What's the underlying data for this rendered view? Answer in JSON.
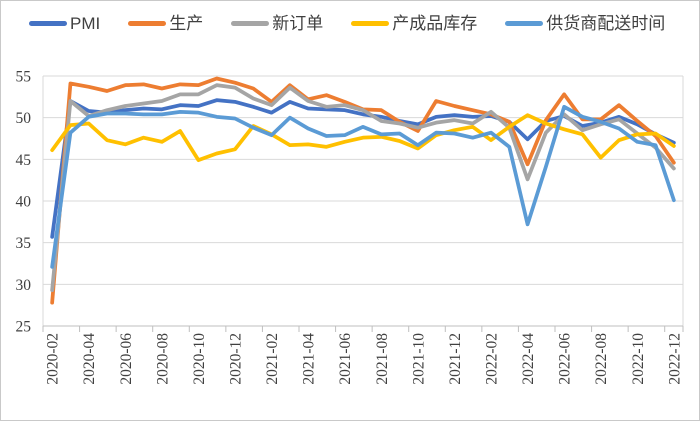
{
  "colors": {
    "pmi": "#4472C4",
    "production": "#ED7D31",
    "new_orders": "#A5A5A5",
    "inventory": "#FFC000",
    "delivery": "#5B9BD5",
    "gridline": "#D9D9D9",
    "axis": "#BFBFBF",
    "axis_text": "#404040",
    "frame_border": "#C9C9C9"
  },
  "legend": {
    "items": [
      {
        "label": "PMI",
        "color": "#4472C4"
      },
      {
        "label": "生产",
        "color": "#ED7D31"
      },
      {
        "label": "新订单",
        "color": "#A5A5A5"
      },
      {
        "label": "产成品库存",
        "color": "#FFC000"
      },
      {
        "label": "供货商配送时间",
        "color": "#5B9BD5"
      }
    ]
  },
  "chart_data": {
    "type": "line",
    "title": "",
    "xlabel": "",
    "ylabel": "",
    "ylim": [
      25,
      55
    ],
    "y_ticks": [
      25,
      30,
      35,
      40,
      45,
      50,
      55
    ],
    "grid": true,
    "legend_position": "top",
    "x_label_every": 2,
    "x": [
      "2020-02",
      "2020-03",
      "2020-04",
      "2020-05",
      "2020-06",
      "2020-07",
      "2020-08",
      "2020-09",
      "2020-10",
      "2020-11",
      "2020-12",
      "2021-01",
      "2021-02",
      "2021-03",
      "2021-04",
      "2021-05",
      "2021-06",
      "2021-07",
      "2021-08",
      "2021-09",
      "2021-10",
      "2021-11",
      "2021-12",
      "2022-01",
      "2022-02",
      "2022-03",
      "2022-04",
      "2022-05",
      "2022-06",
      "2022-07",
      "2022-08",
      "2022-09",
      "2022-10",
      "2022-11",
      "2022-12"
    ],
    "series": [
      {
        "name": "PMI",
        "color": "#4472C4",
        "values": [
          35.7,
          52.0,
          50.8,
          50.6,
          50.9,
          51.1,
          51.0,
          51.5,
          51.4,
          52.1,
          51.9,
          51.3,
          50.6,
          51.9,
          51.1,
          51.0,
          50.9,
          50.4,
          50.1,
          49.6,
          49.2,
          50.1,
          50.3,
          50.1,
          50.2,
          49.5,
          47.4,
          49.6,
          50.2,
          49.0,
          49.4,
          50.1,
          49.2,
          48.0,
          47.0
        ]
      },
      {
        "name": "生产",
        "color": "#ED7D31",
        "values": [
          27.8,
          54.1,
          53.7,
          53.2,
          53.9,
          54.0,
          53.5,
          54.0,
          53.9,
          54.7,
          54.2,
          53.5,
          51.9,
          53.9,
          52.2,
          52.7,
          51.9,
          51.0,
          50.9,
          49.5,
          48.4,
          52.0,
          51.4,
          50.9,
          50.4,
          49.5,
          44.4,
          49.7,
          52.8,
          49.8,
          49.8,
          51.5,
          49.6,
          47.8,
          44.6
        ]
      },
      {
        "name": "新订单",
        "color": "#A5A5A5",
        "values": [
          29.3,
          52.0,
          50.2,
          50.9,
          51.4,
          51.7,
          52.0,
          52.8,
          52.8,
          53.9,
          53.6,
          52.3,
          51.5,
          53.6,
          52.0,
          51.3,
          51.5,
          50.9,
          49.6,
          49.3,
          48.8,
          49.4,
          49.7,
          49.3,
          50.7,
          48.8,
          42.6,
          48.2,
          50.4,
          48.5,
          49.2,
          49.8,
          48.1,
          46.4,
          43.9
        ]
      },
      {
        "name": "产成品库存",
        "color": "#FFC000",
        "values": [
          46.1,
          49.1,
          49.3,
          47.3,
          46.8,
          47.6,
          47.1,
          48.4,
          44.9,
          45.7,
          46.2,
          49.0,
          48.0,
          46.7,
          46.8,
          46.5,
          47.1,
          47.6,
          47.7,
          47.2,
          46.3,
          47.9,
          48.5,
          48.9,
          47.3,
          48.9,
          50.3,
          49.3,
          48.6,
          48.0,
          45.2,
          47.3,
          48.0,
          48.1,
          46.6
        ]
      },
      {
        "name": "供货商配送时间",
        "color": "#5B9BD5",
        "values": [
          32.1,
          48.2,
          50.1,
          50.5,
          50.5,
          50.4,
          50.4,
          50.7,
          50.6,
          50.1,
          49.9,
          48.8,
          47.9,
          50.0,
          48.7,
          47.8,
          47.9,
          48.9,
          48.0,
          48.1,
          46.7,
          48.2,
          48.1,
          47.6,
          48.2,
          46.5,
          37.2,
          44.1,
          51.3,
          50.1,
          49.5,
          48.7,
          47.1,
          46.7,
          40.1
        ]
      }
    ]
  }
}
